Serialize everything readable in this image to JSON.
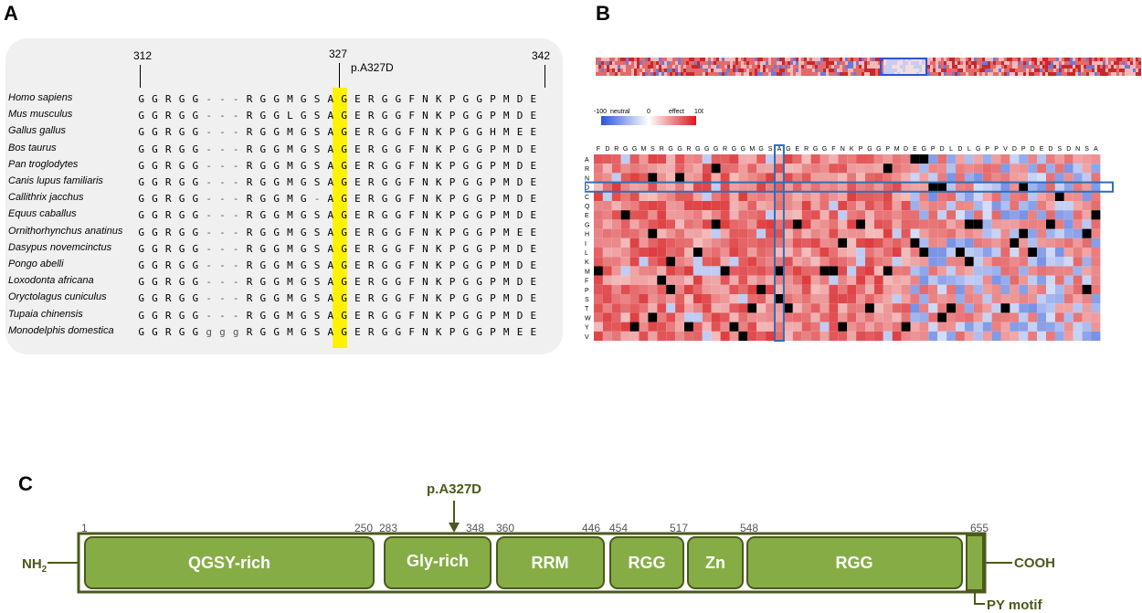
{
  "panels": {
    "a": "A",
    "b": "B",
    "c": "C"
  },
  "alignment": {
    "positions": [
      "312",
      "327",
      "342"
    ],
    "mutation": "p.A327D",
    "rows": [
      {
        "species": "Homo sapiens",
        "seq": "GGRGG---RGGMGSAGERGGFNKPGGPMDE"
      },
      {
        "species": "Mus musculus",
        "seq": "GGRGG---RGGLGSAGERGGFNKPGGPMDE"
      },
      {
        "species": "Gallus gallus",
        "seq": "GGRGG---RGGMGSAGERGGFNKPGGHMEE"
      },
      {
        "species": "Bos taurus",
        "seq": "GGRGG---RGGMGSAGERGGFNKPGGPMDE"
      },
      {
        "species": "Pan troglodytes",
        "seq": "GGRGG---RGGMGSAGERGGFNKPGGPMDE"
      },
      {
        "species": "Canis lupus familiaris",
        "seq": "GGRGG---RGGMGSAGERGGFNKPGGPMDE"
      },
      {
        "species": "Callithrix jacchus",
        "seq": "GGRGG---RGGMG-AGERGGFNKPGGPMDE"
      },
      {
        "species": "Equus caballus",
        "seq": "GGRGG---RGGMGSAGERGGFNKPGGPMDE"
      },
      {
        "species": "Ornithorhynchus anatinus",
        "seq": "GGRGG---RGGMGSAGERGGFNKPGGPMEE"
      },
      {
        "species": "Dasypus novemcinctus",
        "seq": "GGRGG---RGGMGSAGERGGFNKPGGPMDE"
      },
      {
        "species": "Pongo abelli",
        "seq": "GGRGG---RGGMGSAGERGGFNKPGGPMDE"
      },
      {
        "species": "Loxodonta africana",
        "seq": "GGRGG---RGGMGSAGERGGFNKPGGPMDE"
      },
      {
        "species": "Oryctolagus cuniculus",
        "seq": "GGRGG---RGGMGSAGERGGFNKPGGPMDE"
      },
      {
        "species": "Tupaia chinensis",
        "seq": "GGRGG---RGGMGSAGERGGFNKPGGPMDE"
      },
      {
        "species": "Monodelphis domestica",
        "seq": "GGRGGgggRGGMGSAGERGGFNKPGGPMEE"
      }
    ]
  },
  "heatmap": {
    "legend": {
      "min": "-100",
      "neutral": "neutral",
      "zero": "0",
      "effect": "effect",
      "max": "100"
    },
    "columns": "FDRGGMSRGGRGGGRGGMGSAGERGGFNKPGGPMDEGPDLDLGPPVDPDEDSDNSA",
    "rows": [
      "A",
      "R",
      "N",
      "D",
      "C",
      "Q",
      "E",
      "G",
      "H",
      "I",
      "L",
      "K",
      "M",
      "F",
      "P",
      "S",
      "T",
      "W",
      "Y",
      "V"
    ],
    "colors": {
      "positive": "#d7191c",
      "negative": "#2c55d6",
      "neutral": "#ffffff",
      "box": "#2f6fb5"
    }
  },
  "domains": {
    "nh2": "NH",
    "nh2_sub": "2",
    "cooh": "COOH",
    "mutation": "p.A327D",
    "py_motif": "PY motif",
    "items": [
      {
        "label": "QGSY-rich",
        "start": "1",
        "end": "250"
      },
      {
        "label": "Gly-rich",
        "start": "283",
        "end": "348"
      },
      {
        "label": "RRM",
        "start": "360",
        "end": "446"
      },
      {
        "label": "RGG",
        "start": "454",
        "end": "517"
      },
      {
        "label": "Zn",
        "start": "",
        "end": ""
      },
      {
        "label": "RGG",
        "start": "548",
        "end": "655"
      }
    ],
    "colors": {
      "fill": "#86ad45",
      "border": "#4a5a1c"
    }
  }
}
